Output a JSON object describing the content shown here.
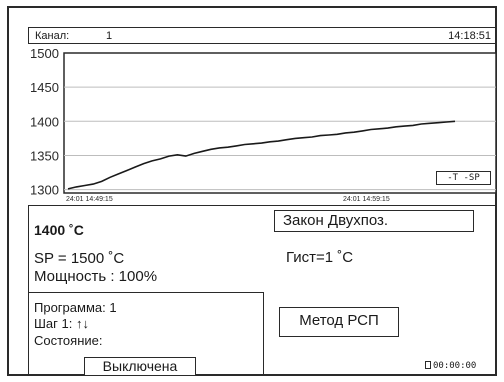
{
  "header": {
    "channel_label": "Канал:",
    "channel_value": "1",
    "time": "14:18:51"
  },
  "chart_data": {
    "type": "line",
    "ylim": [
      1295,
      1500
    ],
    "yticks": [
      "1500",
      "1450",
      "1400",
      "1350",
      "1300"
    ],
    "xticks": [
      "24:01 14:49:15",
      "24:01 14:59:15"
    ],
    "legend": "-T -SP",
    "series": [
      {
        "values": [
          1301,
          1304,
          1306,
          1308,
          1312,
          1318,
          1323,
          1328,
          1333,
          1338,
          1342,
          1345,
          1349,
          1351,
          1349,
          1353,
          1356,
          1359,
          1361,
          1362,
          1364,
          1366,
          1367,
          1368,
          1370,
          1371,
          1373,
          1375,
          1376,
          1377,
          1379,
          1380,
          1381,
          1383,
          1384,
          1386,
          1388,
          1389,
          1390,
          1392,
          1393,
          1394,
          1396,
          1397,
          1398,
          1399,
          1400
        ]
      }
    ]
  },
  "status": {
    "temperature": "1400 ˚C",
    "setpoint": "SP =  1500 ˚C",
    "power": "Мощность :   100%",
    "law": "Закон Двухпоз.",
    "hysteresis": "Гист=1    ˚C"
  },
  "program": {
    "program_line": "Программа:  1",
    "step_line": "Шаг 1:  ↑↓",
    "state_line": "Состояние:",
    "state_value": "Выключена"
  },
  "method": "Метод РСП",
  "timer": "00:00:00"
}
